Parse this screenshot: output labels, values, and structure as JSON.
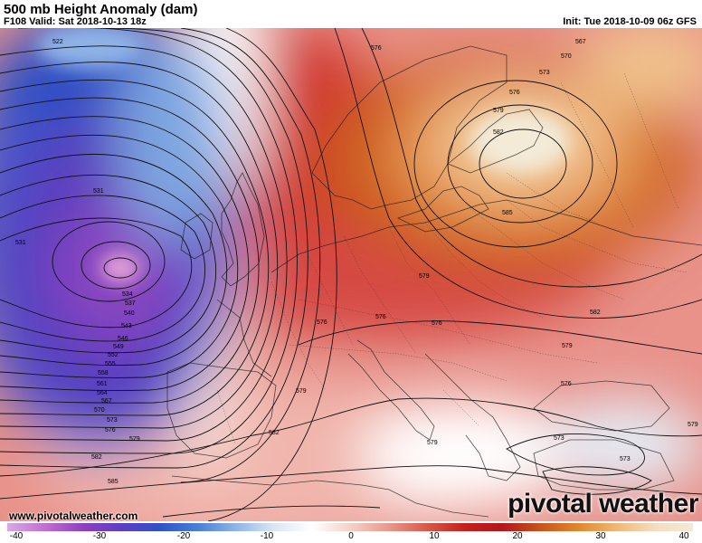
{
  "header": {
    "title": "500 mb Height Anomaly (dam)",
    "valid": "F108 Valid: Sat 2018-10-13 18z",
    "init": "Init: Tue 2018-10-09 06z GFS"
  },
  "map": {
    "contour_labels": [
      "522",
      "531",
      "531",
      "534",
      "537",
      "540",
      "543",
      "546",
      "549",
      "552",
      "555",
      "558",
      "561",
      "564",
      "567",
      "570",
      "573",
      "576",
      "579",
      "582",
      "585",
      "567",
      "570",
      "573",
      "576",
      "579",
      "582",
      "585",
      "579",
      "582",
      "576",
      "576",
      "576",
      "579",
      "579",
      "579",
      "582",
      "576",
      "573",
      "573",
      "579",
      "576",
      "576"
    ],
    "low_center_color": "#e9a5d9",
    "high_center_color": "#f3ead8"
  },
  "footer": {
    "website": "www.pivotalweather.com",
    "brand": "pivotal weather"
  },
  "colorbar": {
    "ticks": [
      "-40",
      "-30",
      "-20",
      "-10",
      "0",
      "10",
      "20",
      "30",
      "40"
    ],
    "colors": [
      "#d9a9e6",
      "#c06ed0",
      "#8d3fc0",
      "#5b3fc8",
      "#2f52c8",
      "#4a7ed8",
      "#8eb5e6",
      "#dbe6f3",
      "#ffffff",
      "#f5d1c8",
      "#e89a8c",
      "#d95a4a",
      "#c4201e",
      "#b3161b",
      "#c9541c",
      "#e0882e",
      "#efb877",
      "#f5dcbf",
      "#f3ead8"
    ]
  }
}
